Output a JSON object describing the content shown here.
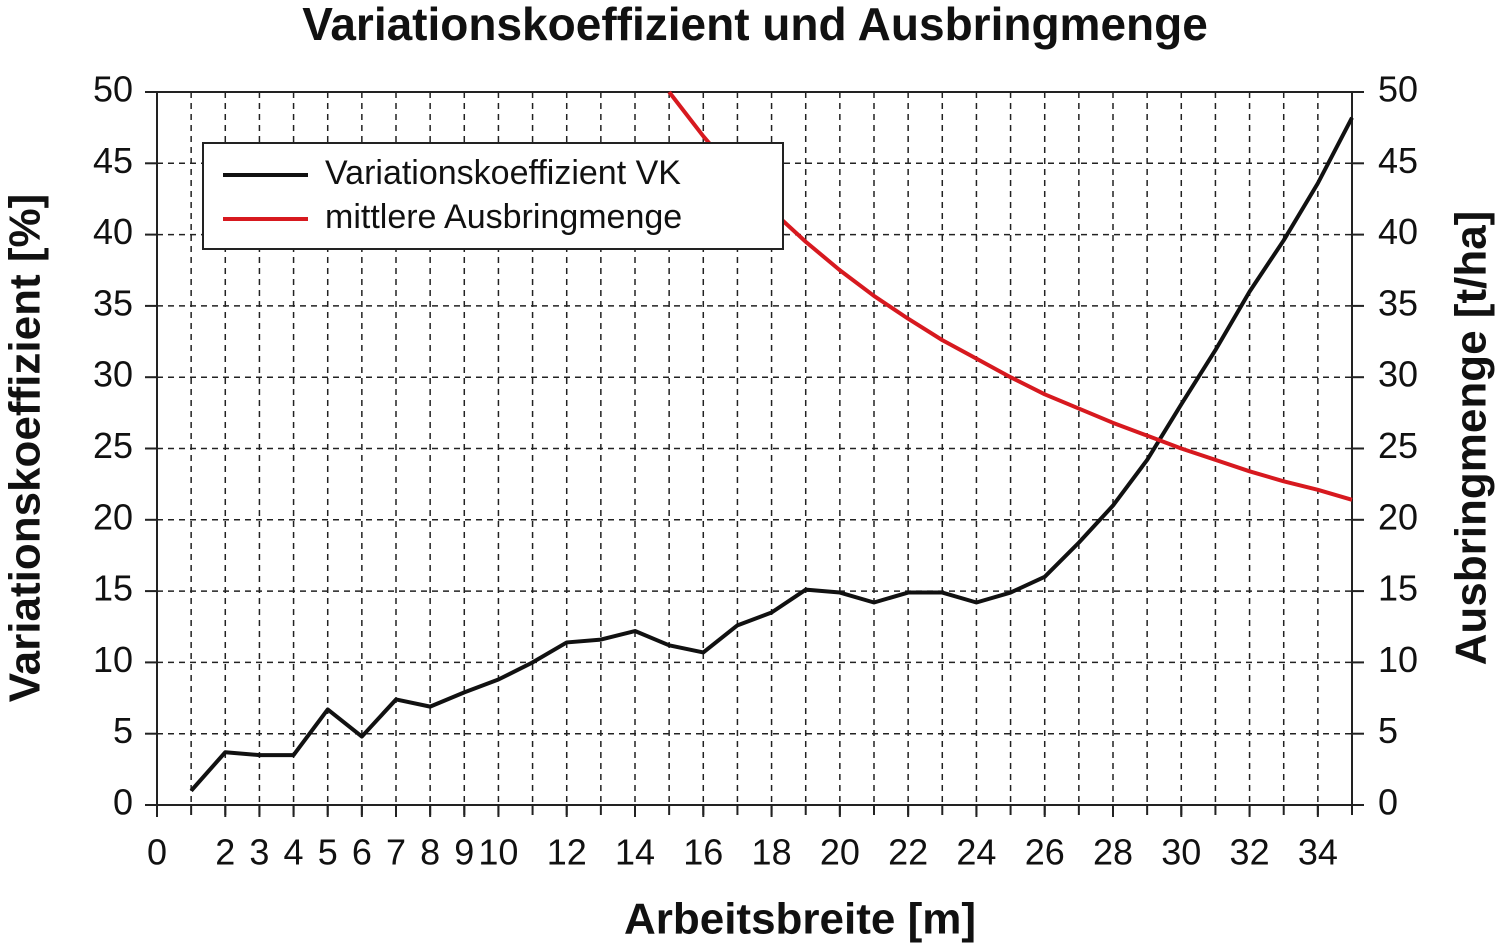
{
  "chart_data": {
    "type": "line",
    "title": "Variationskoeffizient und Ausbringmenge",
    "x_label": "Arbeitsbreite [m]",
    "y_label": "Variationskoeffizient [%]",
    "y2_label": "Ausbringmenge [t/ha]",
    "xlim": [
      0,
      35
    ],
    "xticks": [
      0,
      2,
      3,
      4,
      5,
      6,
      7,
      8,
      9,
      10,
      12,
      14,
      16,
      18,
      20,
      22,
      24,
      26,
      28,
      30,
      32,
      34
    ],
    "ylim": [
      0,
      50
    ],
    "yticks": [
      0,
      5,
      10,
      15,
      20,
      25,
      30,
      35,
      40,
      45,
      50
    ],
    "y2lim": [
      0,
      50
    ],
    "y2ticks": [
      0,
      5,
      10,
      15,
      20,
      25,
      30,
      35,
      40,
      45,
      50
    ],
    "grid": true,
    "legend": "upper left",
    "series": [
      {
        "name": "Variationskoeffizient VK",
        "color": "#111111",
        "x": [
          1,
          2,
          3,
          4,
          5,
          6,
          7,
          8,
          9,
          10,
          11,
          12,
          13,
          14,
          15,
          16,
          17,
          18,
          19,
          20,
          21,
          22,
          23,
          24,
          25,
          26,
          27,
          28,
          29,
          30,
          31,
          32,
          33,
          34,
          35
        ],
        "values": [
          1.0,
          3.7,
          3.5,
          3.5,
          6.7,
          4.8,
          7.4,
          6.9,
          7.9,
          8.8,
          10.0,
          11.4,
          11.6,
          12.2,
          11.2,
          10.7,
          12.6,
          13.5,
          15.1,
          14.9,
          14.2,
          14.9,
          14.9,
          14.2,
          14.9,
          16.0,
          18.4,
          21.0,
          24.2,
          28.1,
          31.9,
          36.0,
          39.6,
          43.6,
          48.2
        ]
      },
      {
        "name": "mittlere Ausbringmenge",
        "color": "#d7191f",
        "axis": "y2",
        "x": [
          15,
          16,
          17,
          18,
          19,
          20,
          21,
          22,
          23,
          24,
          25,
          26,
          27,
          28,
          29,
          30,
          31,
          32,
          33,
          34,
          35
        ],
        "values": [
          50,
          46.9,
          44.1,
          41.7,
          39.5,
          37.5,
          35.7,
          34.1,
          32.6,
          31.3,
          30,
          28.8,
          27.8,
          26.8,
          25.9,
          25,
          24.2,
          23.4,
          22.7,
          22.1,
          21.4
        ]
      }
    ]
  }
}
